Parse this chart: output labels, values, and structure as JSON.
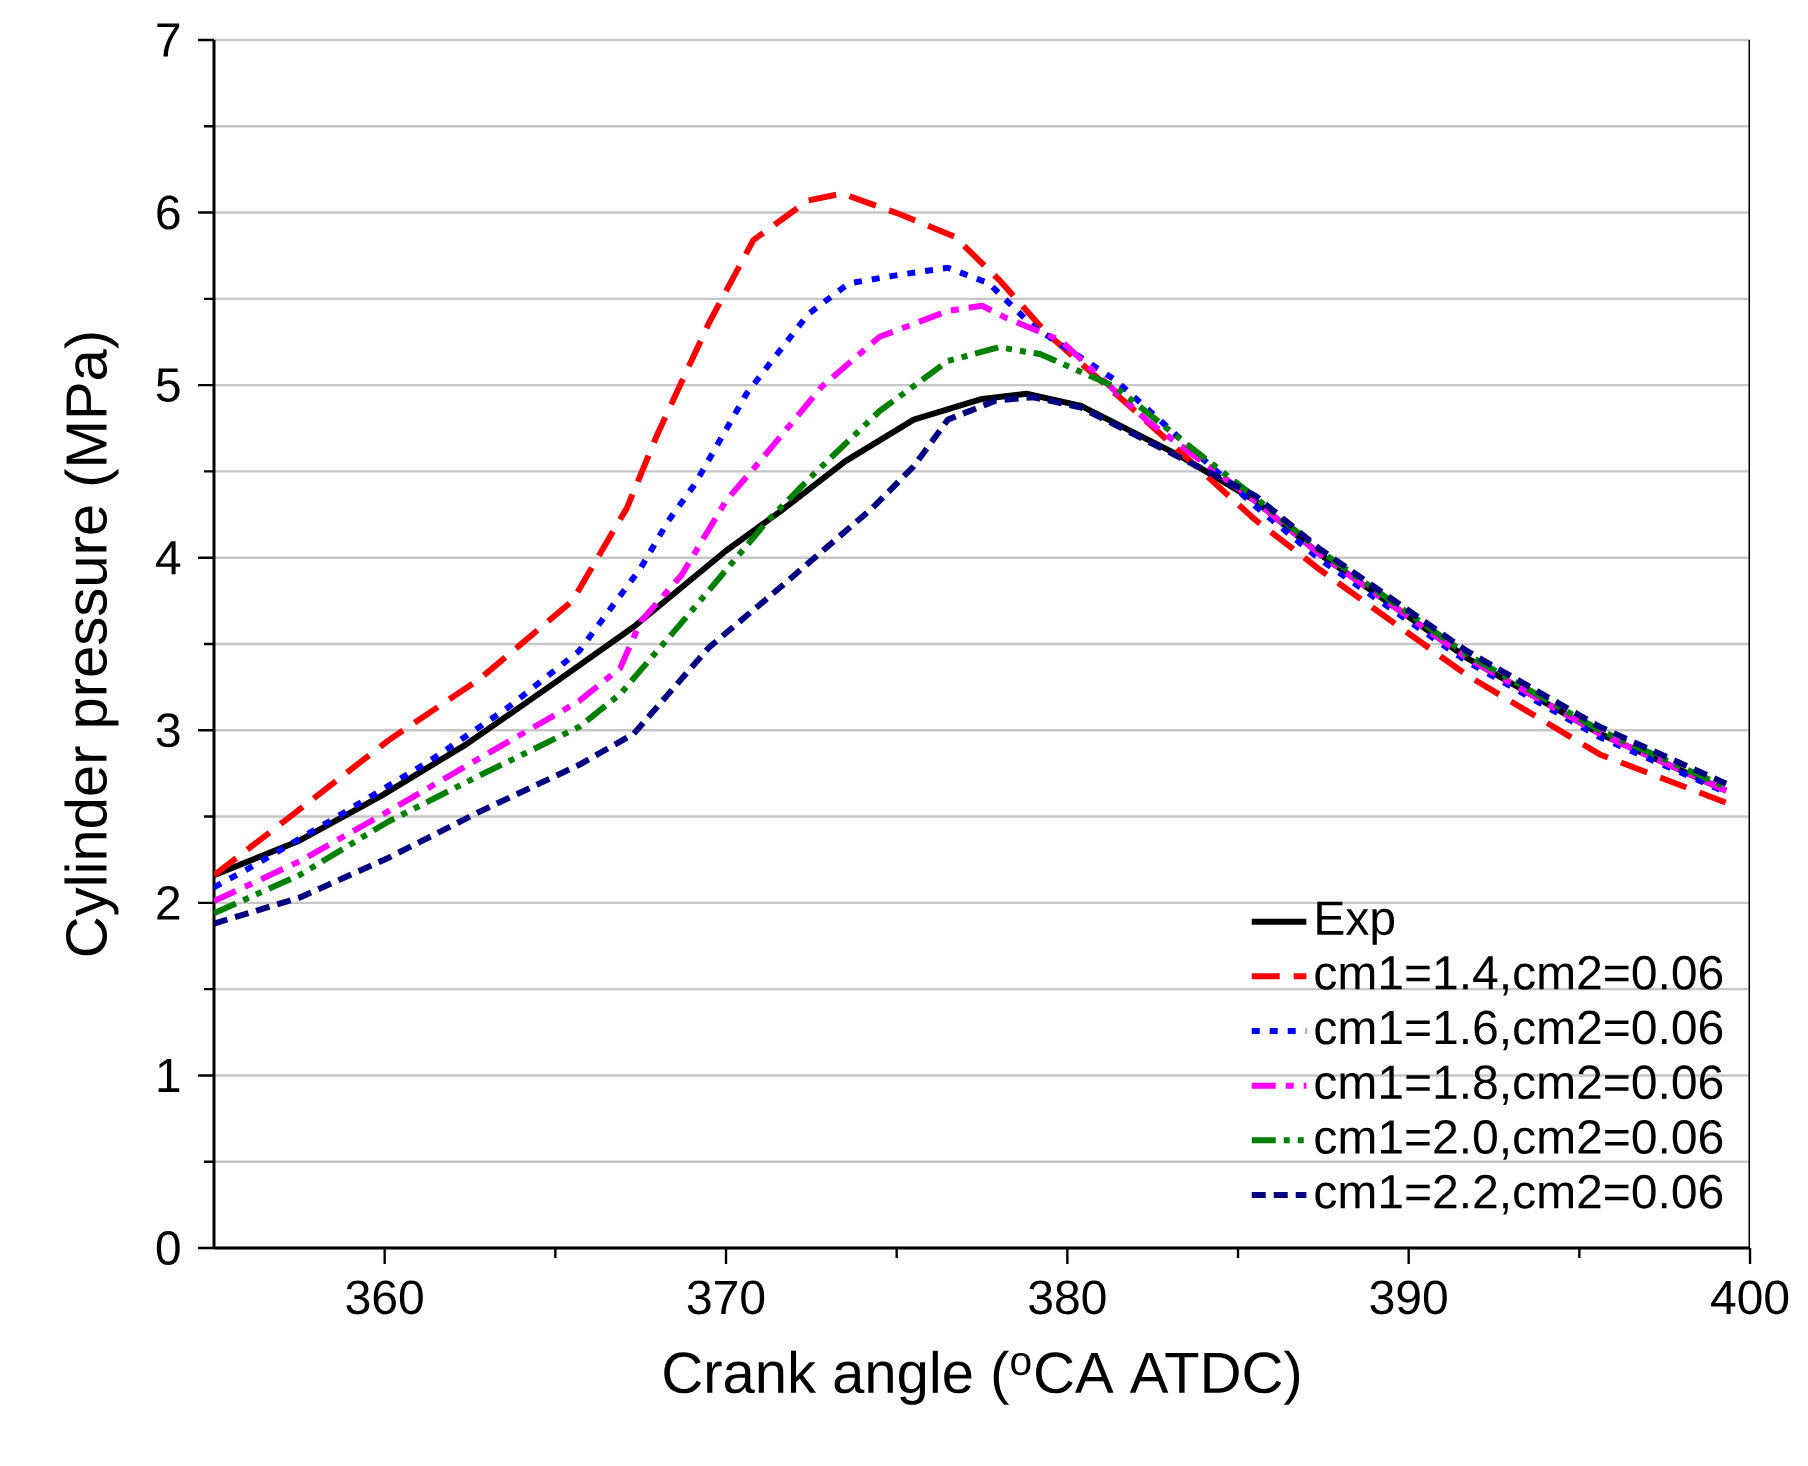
{
  "chart_data": {
    "type": "line",
    "xlabel": "Crank angle ($^{o}$CA ATDC)",
    "ylabel": "Cylinder pressure (MPa)",
    "xlim": [
      355,
      400
    ],
    "ylim": [
      0,
      7
    ],
    "xticks": [
      360,
      370,
      380,
      390,
      400
    ],
    "yticks": [
      0,
      1,
      2,
      3,
      4,
      5,
      6,
      7
    ],
    "grid": "y",
    "legend": "bottom right",
    "series": [
      {
        "name": "Exp",
        "color": "#000000",
        "line_style": "solid",
        "x": [
          355,
          357.5,
          359.9,
          362.4,
          364.8,
          367.3,
          370.0,
          371.6,
          373.5,
          375.5,
          377.5,
          378.8,
          380.4,
          383.3,
          385.5,
          387.4,
          391.7,
          395.6,
          399.3
        ],
        "values": [
          2.16,
          2.36,
          2.62,
          2.92,
          3.25,
          3.6,
          4.04,
          4.27,
          4.56,
          4.8,
          4.92,
          4.95,
          4.88,
          4.59,
          4.33,
          4.02,
          3.42,
          2.98,
          2.65
        ]
      },
      {
        "name": "cm1=1.4,cm2=0.06",
        "color": "#ff0000",
        "line_style": "dashed",
        "x": [
          355,
          357.1,
          360.1,
          362.8,
          365.5,
          367.1,
          368.0,
          369.5,
          370.8,
          372.4,
          373.4,
          375.1,
          376.7,
          378.0,
          379.4,
          382.1,
          385.5,
          387.4,
          391.7,
          395.6,
          399.3
        ],
        "values": [
          2.16,
          2.48,
          2.94,
          3.3,
          3.75,
          4.29,
          4.72,
          5.36,
          5.84,
          6.07,
          6.11,
          5.99,
          5.86,
          5.61,
          5.3,
          4.83,
          4.22,
          3.93,
          3.32,
          2.86,
          2.58
        ]
      },
      {
        "name": "cm1=1.6,cm2=0.06",
        "color": "#0000ff",
        "line_style": "dotted",
        "x": [
          355,
          356.2,
          358.7,
          361.3,
          363.6,
          365.7,
          367.5,
          368.3,
          369.1,
          370.6,
          372.4,
          373.6,
          375.1,
          376.5,
          377.7,
          379.0,
          381.4,
          385.5,
          387.4,
          391.7,
          395.6,
          399.3
        ],
        "values": [
          2.09,
          2.22,
          2.51,
          2.82,
          3.13,
          3.46,
          3.94,
          4.21,
          4.43,
          4.95,
          5.41,
          5.59,
          5.64,
          5.68,
          5.59,
          5.34,
          5.03,
          4.3,
          3.99,
          3.4,
          2.96,
          2.64
        ]
      },
      {
        "name": "cm1=1.8,cm2=0.06",
        "color": "#ff00ff",
        "line_style": "dashdot",
        "x": [
          355,
          357.5,
          360.1,
          362.8,
          365.7,
          366.9,
          367.5,
          368.7,
          370.0,
          371.0,
          372.8,
          374.5,
          376.5,
          377.5,
          378.2,
          379.8,
          382.3,
          385.5,
          387.4,
          391.7,
          395.6,
          399.3
        ],
        "values": [
          2.01,
          2.24,
          2.53,
          2.84,
          3.17,
          3.36,
          3.63,
          3.9,
          4.33,
          4.56,
          4.99,
          5.28,
          5.43,
          5.46,
          5.39,
          5.26,
          4.8,
          4.33,
          4.02,
          3.42,
          2.98,
          2.65
        ]
      },
      {
        "name": "cm1=2.0,cm2=0.06",
        "color": "#008000",
        "line_style": "dashdotdot",
        "x": [
          355,
          357.5,
          360.1,
          362.8,
          365.7,
          366.9,
          368.9,
          371.2,
          372.6,
          374.5,
          376.5,
          378.0,
          379.2,
          381.4,
          383.1,
          385.5,
          387.4,
          391.7,
          395.6,
          399.3
        ],
        "values": [
          1.94,
          2.16,
          2.47,
          2.74,
          3.02,
          3.21,
          3.67,
          4.21,
          4.49,
          4.85,
          5.14,
          5.22,
          5.18,
          4.99,
          4.72,
          4.35,
          4.04,
          3.44,
          3.0,
          2.67
        ]
      },
      {
        "name": "cm1=2.2,cm2=0.06",
        "color": "#000080",
        "line_style": "shortdashed",
        "x": [
          355,
          357.5,
          360.1,
          362.8,
          365.7,
          367.3,
          369.5,
          371.6,
          374.3,
          375.5,
          376.5,
          377.9,
          379.0,
          380.4,
          383.3,
          385.5,
          387.4,
          391.7,
          395.6,
          399.3
        ],
        "values": [
          1.88,
          2.03,
          2.26,
          2.53,
          2.8,
          2.98,
          3.48,
          3.83,
          4.29,
          4.53,
          4.8,
          4.91,
          4.93,
          4.87,
          4.58,
          4.36,
          4.05,
          3.46,
          3.02,
          2.69
        ]
      }
    ]
  }
}
